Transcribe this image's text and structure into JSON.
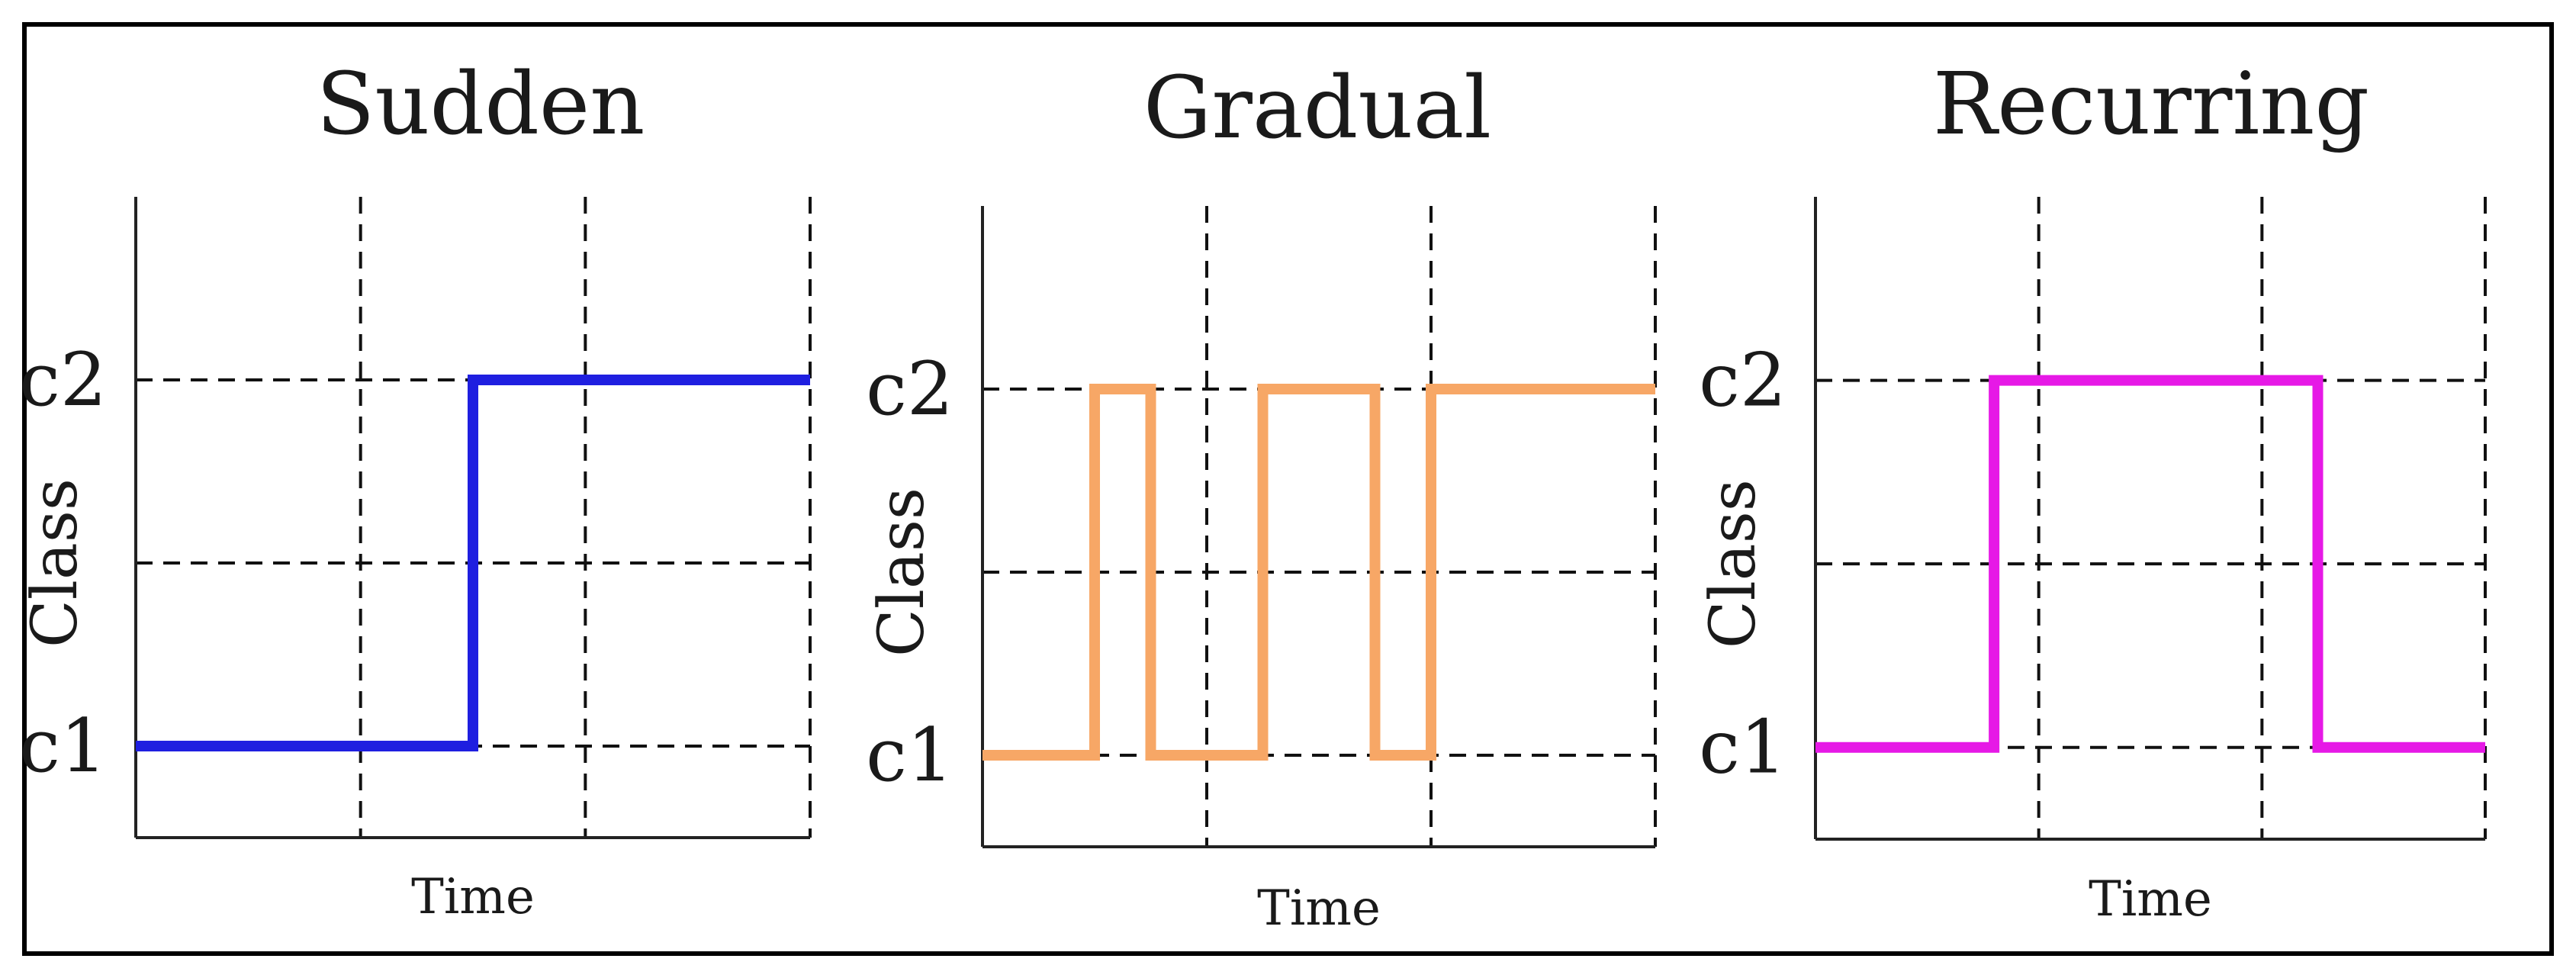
{
  "chart_data": [
    {
      "type": "line",
      "step": true,
      "title": "Sudden",
      "xlabel": "Time",
      "ylabel": "Class",
      "yticks": [
        "c1",
        "c2"
      ],
      "grid": true,
      "xlim": [
        0,
        3
      ],
      "ylim": [
        -0.25,
        1.5
      ],
      "color": "#1f1fe0",
      "series": [
        {
          "x": [
            0,
            1.5,
            1.5,
            3
          ],
          "y": [
            0,
            0,
            1,
            1
          ]
        }
      ]
    },
    {
      "type": "line",
      "step": true,
      "title": "Gradual",
      "xlabel": "Time",
      "ylabel": "Class",
      "yticks": [
        "c1",
        "c2"
      ],
      "grid": true,
      "xlim": [
        0,
        3
      ],
      "ylim": [
        -0.25,
        1.5
      ],
      "color": "#f7a766",
      "series": [
        {
          "x": [
            0,
            0.5,
            0.5,
            0.75,
            0.75,
            1.25,
            1.25,
            1.75,
            1.75,
            2.0,
            2.0,
            3.0
          ],
          "y": [
            0,
            0,
            1,
            1,
            0,
            0,
            1,
            1,
            0,
            0,
            1,
            1
          ]
        }
      ]
    },
    {
      "type": "line",
      "step": true,
      "title": "Recurring",
      "xlabel": "Time",
      "ylabel": "Class",
      "yticks": [
        "c1",
        "c2"
      ],
      "grid": true,
      "xlim": [
        0,
        3
      ],
      "ylim": [
        -0.25,
        1.5
      ],
      "color": "#e619e6",
      "series": [
        {
          "x": [
            0,
            0.8,
            0.8,
            2.25,
            2.25,
            3.0
          ],
          "y": [
            0,
            0,
            1,
            1,
            0,
            0
          ]
        }
      ]
    }
  ]
}
